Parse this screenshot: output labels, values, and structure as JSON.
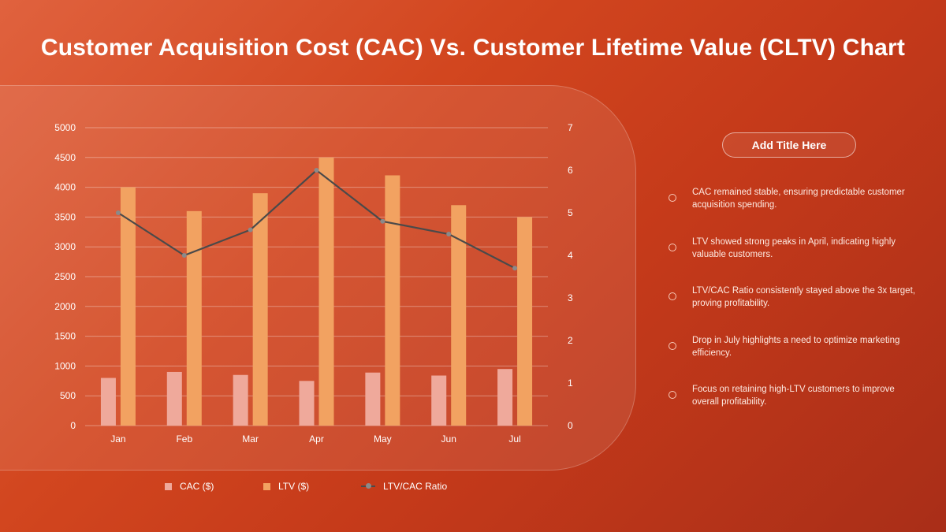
{
  "title": "Customer Acquisition Cost (CAC) Vs. Customer Lifetime Value (CLTV) Chart",
  "chart_data": {
    "type": "bar",
    "categories": [
      "Jan",
      "Feb",
      "Mar",
      "Apr",
      "May",
      "Jun",
      "Jul"
    ],
    "series": [
      {
        "name": "CAC ($)",
        "type": "bar",
        "axis": "left",
        "color": "#efa99b",
        "values": [
          800,
          900,
          850,
          750,
          890,
          840,
          950
        ]
      },
      {
        "name": "LTV ($)",
        "type": "bar",
        "axis": "left",
        "color": "#f2a261",
        "values": [
          4000,
          3600,
          3900,
          4500,
          4200,
          3700,
          3500
        ]
      },
      {
        "name": "LTV/CAC Ratio",
        "type": "line",
        "axis": "right",
        "color": "#4a4a4a",
        "marker_color": "#8a8a8a",
        "values": [
          5.0,
          4.0,
          4.6,
          6.0,
          4.8,
          4.5,
          3.7
        ]
      }
    ],
    "ylim": [
      0,
      5000
    ],
    "yticks": [
      "0",
      "500",
      "1000",
      "1500",
      "2000",
      "2500",
      "3000",
      "3500",
      "4000",
      "4500",
      "5000"
    ],
    "y2lim": [
      0,
      7
    ],
    "y2ticks": [
      "0",
      "1",
      "2",
      "3",
      "4",
      "5",
      "6",
      "7"
    ],
    "grid": true,
    "legend": "bottom"
  },
  "legend": {
    "cac": "CAC ($)",
    "ltv": "LTV ($)",
    "ratio": "LTV/CAC Ratio"
  },
  "side_panel": {
    "title": "Add Title Here",
    "bullets": [
      "CAC remained stable, ensuring predictable customer acquisition spending.",
      "LTV showed strong peaks in April, indicating highly valuable customers.",
      "LTV/CAC Ratio consistently stayed above the 3x target, proving profitability.",
      "Drop in July highlights a need to optimize marketing efficiency.",
      "Focus on retaining high-LTV customers to improve overall profitability."
    ]
  }
}
